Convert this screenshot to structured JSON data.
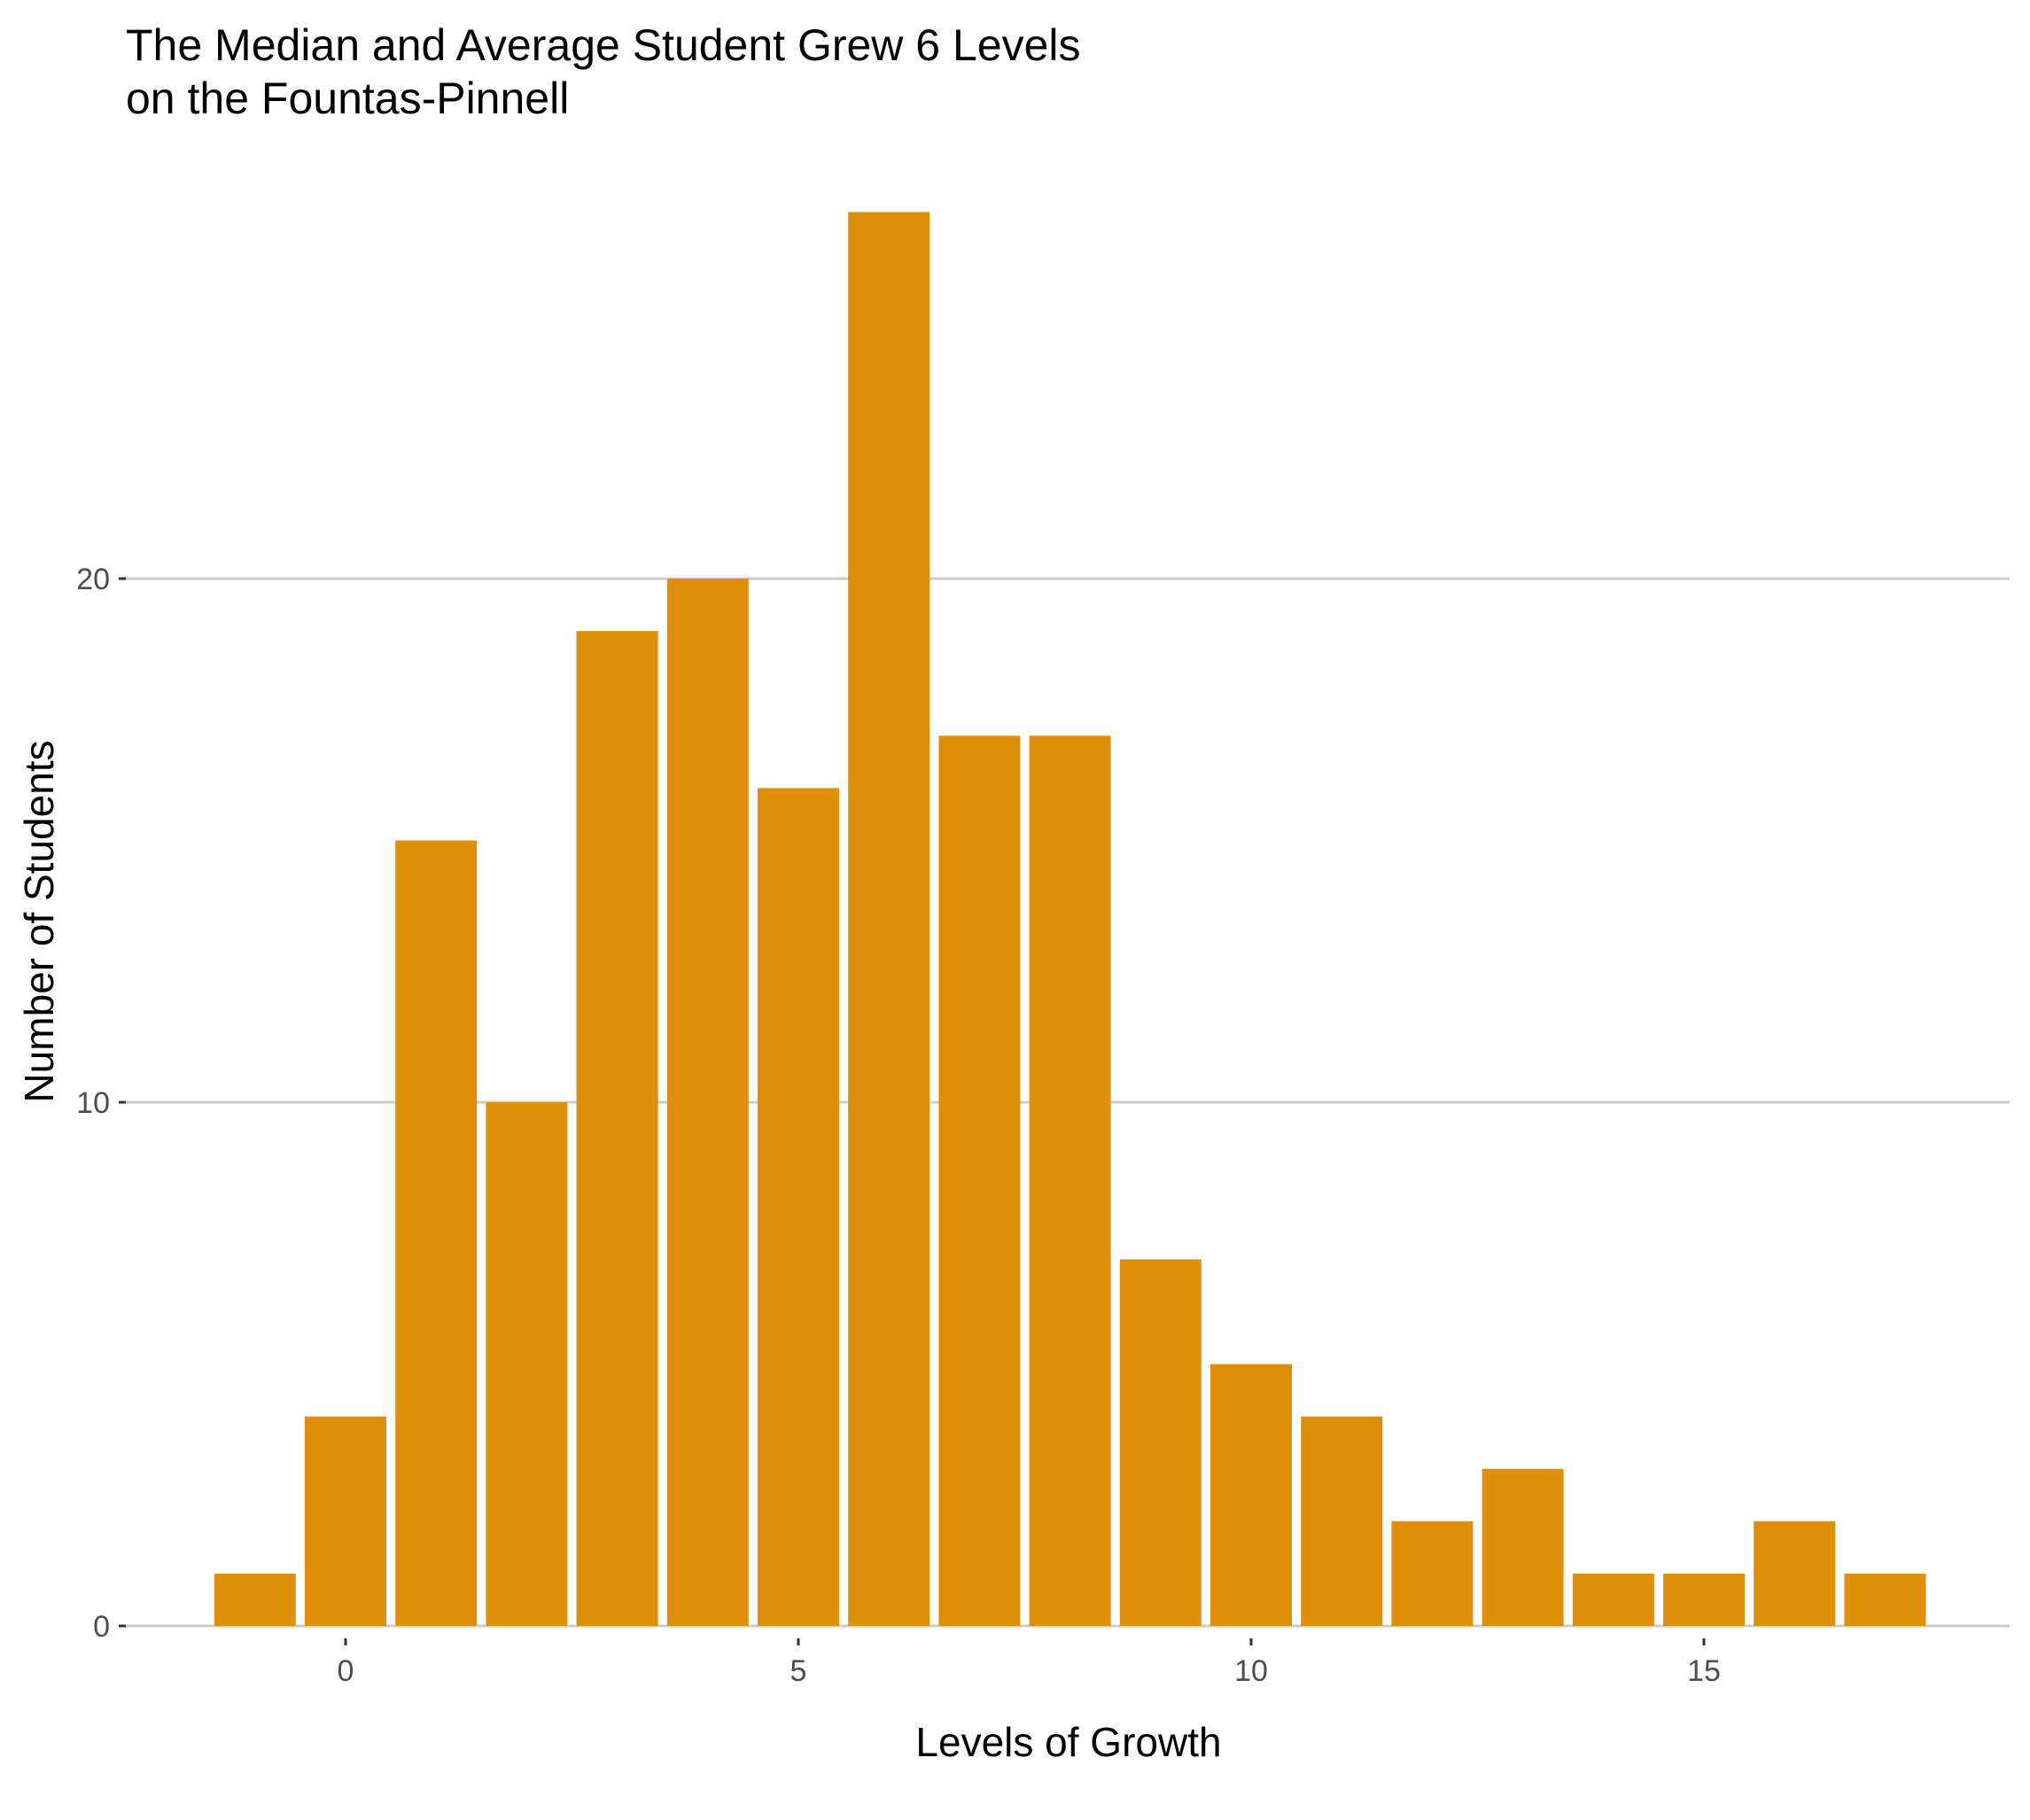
{
  "chart_data": {
    "type": "bar",
    "title": [
      "The Median and Average Student Grew 6 Levels",
      "on the Fountas-Pinnell"
    ],
    "xlabel": "Levels of Growth",
    "ylabel": "Number of Students",
    "x": [
      -1,
      0,
      1,
      2,
      3,
      4,
      5,
      6,
      7,
      8,
      9,
      10,
      11,
      12,
      13,
      14,
      15,
      16,
      17
    ],
    "values": [
      1,
      4,
      15,
      10,
      19,
      20,
      16,
      27,
      17,
      17,
      7,
      5,
      4,
      2,
      3,
      1,
      1,
      2,
      1
    ],
    "xticks": [
      0,
      5,
      10,
      15
    ],
    "yticks": [
      0,
      10,
      20
    ],
    "xlim": [
      -2.1,
      17.95
    ],
    "ylim": [
      0,
      28
    ],
    "grid": "horizontal",
    "legend": "none",
    "colors": {
      "bar": "#DF8F09",
      "grid": "#CCCCCC",
      "tick_label": "#4D4D4D",
      "axis_title": "#000000"
    }
  }
}
